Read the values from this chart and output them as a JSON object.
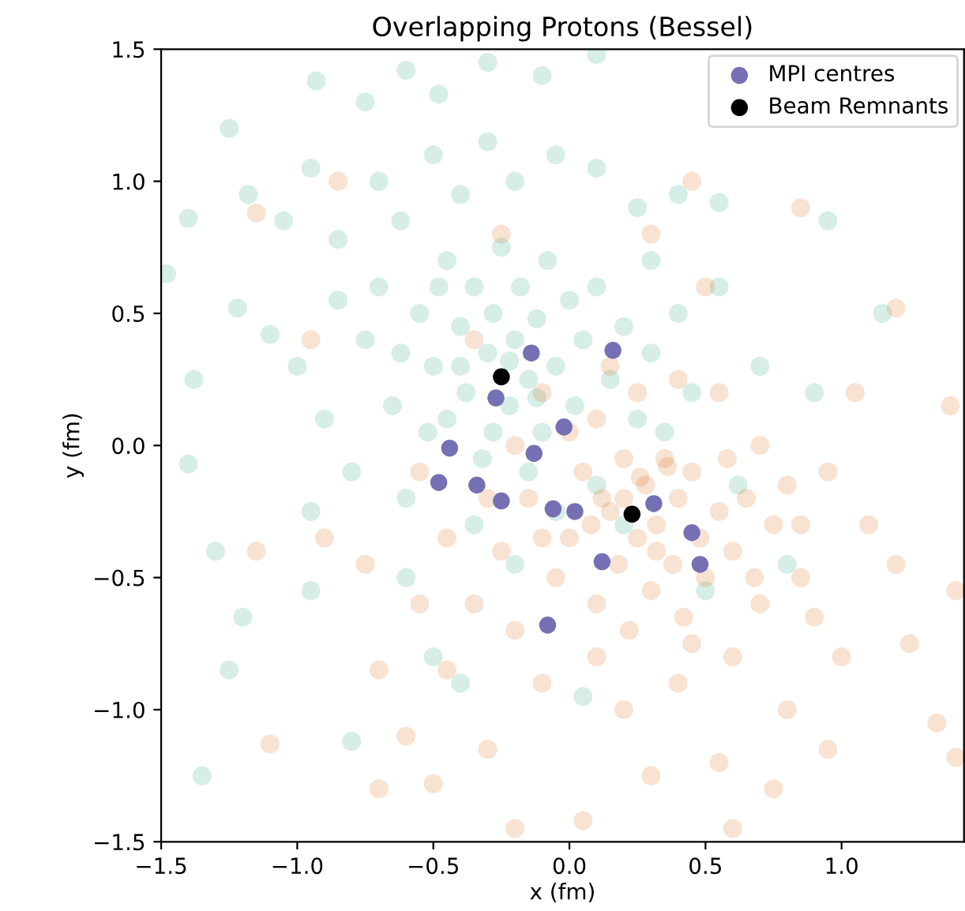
{
  "chart_data": {
    "type": "scatter",
    "title": "Overlapping Protons (Bessel)",
    "xlabel": "x (fm)",
    "ylabel": "y (fm)",
    "xlim": [
      -1.5,
      1.45
    ],
    "ylim": [
      -1.5,
      1.5
    ],
    "xticks": [
      {
        "value": -1.5,
        "label": "−1.5"
      },
      {
        "value": -1.0,
        "label": "−1.0"
      },
      {
        "value": -0.5,
        "label": "−0.5"
      },
      {
        "value": 0.0,
        "label": "0.0"
      },
      {
        "value": 0.5,
        "label": "0.5"
      },
      {
        "value": 1.0,
        "label": "1.0"
      }
    ],
    "yticks": [
      {
        "value": -1.5,
        "label": "−1.5"
      },
      {
        "value": -1.0,
        "label": "−1.0"
      },
      {
        "value": -0.5,
        "label": "−0.5"
      },
      {
        "value": 0.0,
        "label": "0.0"
      },
      {
        "value": 0.5,
        "label": "0.5"
      },
      {
        "value": 1.0,
        "label": "1.0"
      },
      {
        "value": 1.5,
        "label": "1.5"
      }
    ],
    "grid": false,
    "legend": "top right",
    "marker": "circle",
    "series": [
      {
        "color": "#1b9e77",
        "x": [
          -1.4,
          -1.25,
          -0.93,
          -0.75,
          -0.6,
          -0.48,
          -0.3,
          -0.1,
          0.1,
          -1.48,
          -1.38,
          -1.4,
          -1.22,
          -1.1,
          -1.18,
          -1.05,
          -0.95,
          -0.85,
          -0.7,
          -0.62,
          -0.5,
          -0.4,
          -0.3,
          -0.2,
          -0.05,
          0.1,
          0.25,
          0.4,
          0.55,
          0.3,
          0.55,
          0.7,
          1.15,
          0.9,
          -1.3,
          -1.2,
          -1.25,
          -1.35,
          -0.95,
          -0.8,
          -0.5,
          -0.6,
          -0.4,
          0.05,
          0.5,
          0.8,
          -1.0,
          -0.9,
          -0.8,
          -0.95,
          -0.75,
          -0.7,
          -0.65,
          -0.6,
          -0.55,
          -0.5,
          -0.45,
          -0.45,
          -0.4,
          -0.38,
          -0.35,
          -0.32,
          -0.3,
          -0.28,
          -0.25,
          -0.22,
          -0.2,
          -0.18,
          -0.15,
          -0.12,
          -0.1,
          -0.08,
          -0.05,
          0.0,
          0.02,
          0.05,
          0.1,
          0.15,
          0.2,
          0.25,
          0.3,
          0.35,
          0.4,
          -0.15,
          -0.05,
          0.1,
          -0.35,
          -0.2,
          0.2,
          0.45,
          -0.85,
          -0.62,
          -0.52,
          -0.48,
          -0.28,
          -0.22,
          -0.12,
          -0.4,
          0.62,
          0.95
        ],
        "values": [
          0.86,
          1.2,
          1.38,
          1.3,
          1.42,
          1.33,
          1.45,
          1.4,
          1.48,
          0.65,
          0.25,
          -0.07,
          0.52,
          0.42,
          0.95,
          0.85,
          1.05,
          0.78,
          1.0,
          0.85,
          1.1,
          0.95,
          1.15,
          1.0,
          1.1,
          1.05,
          0.9,
          0.95,
          0.92,
          0.7,
          0.6,
          0.3,
          0.5,
          0.2,
          -0.4,
          -0.65,
          -0.85,
          -1.25,
          -0.55,
          -1.12,
          -0.8,
          -0.5,
          -0.9,
          -0.95,
          -0.55,
          -0.45,
          0.3,
          0.1,
          -0.1,
          -0.25,
          0.4,
          0.6,
          0.15,
          -0.2,
          0.5,
          0.3,
          0.7,
          0.1,
          0.45,
          0.2,
          0.6,
          -0.05,
          0.35,
          0.5,
          0.75,
          0.15,
          0.4,
          0.6,
          0.25,
          0.48,
          0.05,
          0.7,
          0.3,
          0.55,
          0.15,
          0.4,
          0.6,
          0.25,
          0.45,
          0.1,
          0.35,
          0.05,
          0.5,
          -0.1,
          -0.25,
          -0.15,
          -0.3,
          -0.45,
          -0.3,
          0.2,
          0.55,
          0.35,
          0.05,
          0.6,
          0.05,
          0.32,
          0.18,
          0.3,
          -0.15,
          0.85
        ]
      },
      {
        "color": "#d95f02",
        "x": [
          0.85,
          1.2,
          1.05,
          1.4,
          1.42,
          1.35,
          1.42,
          1.0,
          1.2,
          0.9,
          0.8,
          0.75,
          0.55,
          0.6,
          0.3,
          0.05,
          -0.2,
          -0.3,
          -0.5,
          -0.6,
          -0.7,
          -1.1,
          -0.7,
          -0.75,
          -0.9,
          -1.15,
          -0.45,
          -0.35,
          -0.1,
          0.1,
          0.2,
          0.4,
          0.6,
          0.7,
          0.85,
          0.95,
          1.1,
          0.7,
          0.55,
          0.5,
          0.3,
          0.45,
          -0.25,
          -0.85,
          -1.15,
          -0.95,
          -0.35,
          -0.55,
          -0.45,
          -0.25,
          -0.15,
          -0.05,
          0.0,
          0.05,
          0.1,
          0.15,
          0.18,
          0.2,
          0.22,
          0.25,
          0.28,
          0.3,
          0.32,
          0.35,
          0.38,
          0.4,
          0.42,
          0.45,
          0.48,
          0.5,
          0.55,
          0.58,
          0.6,
          0.65,
          0.68,
          0.75,
          0.8,
          0.85,
          0.1,
          0.0,
          -0.1,
          -0.2,
          -0.3,
          0.15,
          0.25,
          0.4,
          0.08,
          0.12,
          0.2,
          0.26,
          0.32,
          -0.1,
          -0.55,
          -0.2,
          1.25,
          0.95,
          0.36,
          0.45
        ],
        "values": [
          0.9,
          0.52,
          0.2,
          0.15,
          -0.55,
          -1.05,
          -1.18,
          -0.8,
          -0.45,
          -0.65,
          -1.0,
          -1.3,
          -1.2,
          -1.45,
          -1.25,
          -1.42,
          -1.45,
          -1.15,
          -1.28,
          -1.1,
          -1.3,
          -1.13,
          -0.85,
          -0.45,
          -0.35,
          -0.4,
          -0.85,
          -0.6,
          -0.9,
          -0.8,
          -1.0,
          -0.9,
          -0.8,
          -0.6,
          -0.3,
          -0.1,
          -0.3,
          0.0,
          0.2,
          0.6,
          0.8,
          1.0,
          0.8,
          1.0,
          0.88,
          0.4,
          0.4,
          -0.1,
          -0.35,
          -0.4,
          -0.2,
          -0.5,
          -0.35,
          -0.1,
          -0.6,
          -0.25,
          -0.45,
          -0.05,
          -0.7,
          -0.35,
          -0.15,
          -0.55,
          -0.3,
          -0.05,
          -0.45,
          -0.2,
          -0.65,
          -0.1,
          -0.35,
          -0.5,
          -0.25,
          -0.05,
          -0.4,
          -0.2,
          -0.5,
          -0.3,
          -0.15,
          -0.5,
          0.1,
          0.05,
          0.2,
          0.0,
          -0.2,
          0.3,
          0.2,
          0.25,
          -0.3,
          -0.2,
          -0.2,
          -0.12,
          -0.4,
          -0.35,
          -0.6,
          -0.7,
          -0.75,
          -1.15,
          -0.08,
          -0.75
        ]
      },
      {
        "name": "MPI centres",
        "color": "#7570b3",
        "x": [
          -0.14,
          0.16,
          -0.27,
          -0.02,
          -0.44,
          -0.13,
          -0.48,
          -0.34,
          -0.25,
          -0.06,
          0.02,
          0.31,
          0.45,
          0.48,
          0.12,
          -0.08
        ],
        "values": [
          0.35,
          0.36,
          0.18,
          0.07,
          -0.01,
          -0.03,
          -0.14,
          -0.15,
          -0.21,
          -0.24,
          -0.25,
          -0.22,
          -0.33,
          -0.45,
          -0.44,
          -0.68
        ]
      },
      {
        "name": "Beam Remnants",
        "color": "#000000",
        "x": [
          -0.25,
          0.23
        ],
        "values": [
          0.26,
          -0.26
        ]
      }
    ]
  }
}
